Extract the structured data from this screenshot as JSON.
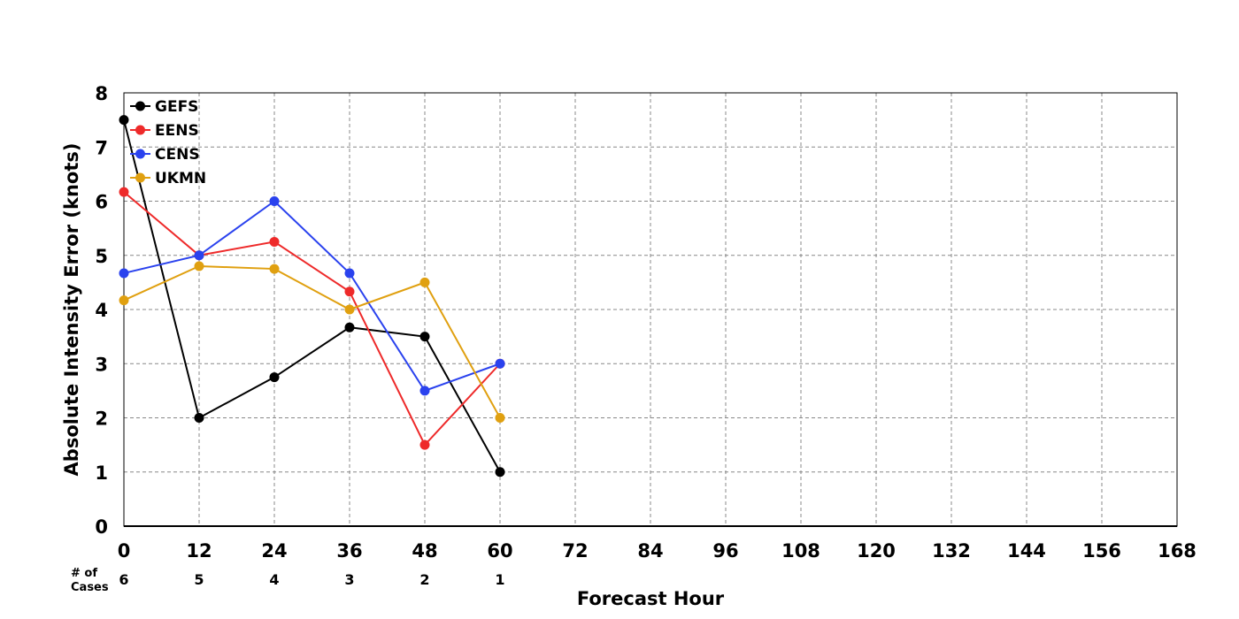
{
  "chart_data": {
    "type": "line",
    "xlabel": "Forecast Hour",
    "ylabel": "Absolute Intensity Error (knots)",
    "xlim": [
      0,
      168
    ],
    "ylim": [
      0,
      8
    ],
    "x_ticks": [
      0,
      12,
      24,
      36,
      48,
      60,
      72,
      84,
      96,
      108,
      120,
      132,
      144,
      156,
      168
    ],
    "y_ticks": [
      0,
      1,
      2,
      3,
      4,
      5,
      6,
      7,
      8
    ],
    "grid": true,
    "legend_position": "top-left",
    "cases_label": "# of Cases",
    "cases": [
      {
        "x": 0,
        "count": "6"
      },
      {
        "x": 12,
        "count": "5"
      },
      {
        "x": 24,
        "count": "4"
      },
      {
        "x": 36,
        "count": "3"
      },
      {
        "x": 48,
        "count": "2"
      },
      {
        "x": 60,
        "count": "1"
      }
    ],
    "series": [
      {
        "name": "GEFS",
        "color": "#000000",
        "x": [
          0,
          12,
          24,
          36,
          48,
          60
        ],
        "values": [
          7.5,
          2.0,
          2.75,
          3.67,
          3.5,
          1.0
        ]
      },
      {
        "name": "EENS",
        "color": "#ee2a2a",
        "x": [
          0,
          12,
          24,
          36,
          48,
          60
        ],
        "values": [
          6.17,
          5.0,
          5.25,
          4.33,
          1.5,
          3.0
        ]
      },
      {
        "name": "CENS",
        "color": "#2a42ee",
        "x": [
          0,
          12,
          24,
          36,
          48,
          60
        ],
        "values": [
          4.67,
          5.0,
          6.0,
          4.67,
          2.5,
          3.0
        ]
      },
      {
        "name": "UKMN",
        "color": "#e0a010",
        "x": [
          0,
          12,
          24,
          36,
          48,
          60
        ],
        "values": [
          4.17,
          4.8,
          4.75,
          4.0,
          4.5,
          2.0
        ]
      }
    ]
  }
}
